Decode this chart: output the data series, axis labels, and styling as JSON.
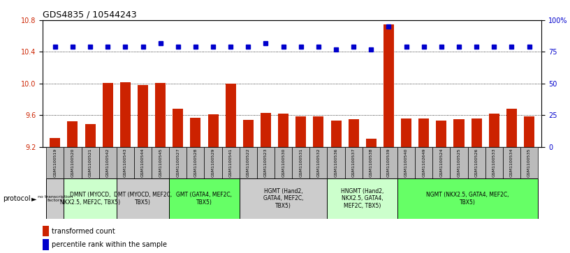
{
  "title": "GDS4835 / 10544243",
  "samples": [
    "GSM1100519",
    "GSM1100520",
    "GSM1100521",
    "GSM1100542",
    "GSM1100543",
    "GSM1100544",
    "GSM1100545",
    "GSM1100527",
    "GSM1100528",
    "GSM1100529",
    "GSM1100541",
    "GSM1100522",
    "GSM1100523",
    "GSM1100530",
    "GSM1100531",
    "GSM1100532",
    "GSM1100536",
    "GSM1100537",
    "GSM1100538",
    "GSM1100539",
    "GSM1100540",
    "GSM1102649",
    "GSM1100524",
    "GSM1100525",
    "GSM1100526",
    "GSM1100533",
    "GSM1100534",
    "GSM1100535"
  ],
  "bar_values": [
    9.31,
    9.52,
    9.49,
    10.01,
    10.02,
    9.98,
    10.01,
    9.68,
    9.57,
    9.61,
    10.0,
    9.54,
    9.63,
    9.62,
    9.58,
    9.58,
    9.53,
    9.55,
    9.3,
    10.75,
    9.56,
    9.56,
    9.53,
    9.55,
    9.56,
    9.62,
    9.68,
    9.58
  ],
  "percentile_values": [
    79,
    79,
    79,
    79,
    79,
    79,
    82,
    79,
    79,
    79,
    79,
    79,
    82,
    79,
    79,
    79,
    77,
    79,
    77,
    95,
    79,
    79,
    79,
    79,
    79,
    79,
    79,
    79
  ],
  "ylim_left": [
    9.2,
    10.8
  ],
  "ylim_right": [
    0,
    100
  ],
  "yticks_left": [
    9.2,
    9.6,
    10.0,
    10.4,
    10.8
  ],
  "yticks_right": [
    0,
    25,
    50,
    75,
    100
  ],
  "ytick_labels_right": [
    "0",
    "25",
    "50",
    "75",
    "100%"
  ],
  "bar_color": "#cc2200",
  "dot_color": "#0000cc",
  "protocol_groups": [
    {
      "label": "no transcription\nfactors",
      "start": 0,
      "end": 1,
      "color": "#cccccc"
    },
    {
      "label": "DMNT (MYOCD,\nNKX2.5, MEF2C, TBX5)",
      "start": 1,
      "end": 4,
      "color": "#ccffcc"
    },
    {
      "label": "DMT (MYOCD, MEF2C,\nTBX5)",
      "start": 4,
      "end": 7,
      "color": "#cccccc"
    },
    {
      "label": "GMT (GATA4, MEF2C,\nTBX5)",
      "start": 7,
      "end": 11,
      "color": "#66ff66"
    },
    {
      "label": "HGMT (Hand2,\nGATA4, MEF2C,\nTBX5)",
      "start": 11,
      "end": 16,
      "color": "#cccccc"
    },
    {
      "label": "HNGMT (Hand2,\nNKX2.5, GATA4,\nMEF2C, TBX5)",
      "start": 16,
      "end": 20,
      "color": "#ccffcc"
    },
    {
      "label": "NGMT (NKX2.5, GATA4, MEF2C,\nTBX5)",
      "start": 20,
      "end": 28,
      "color": "#66ff66"
    }
  ],
  "sample_box_color": "#bbbbbb",
  "protocol_label": "protocol",
  "legend_items": [
    {
      "color": "#cc2200",
      "label": "transformed count"
    },
    {
      "color": "#0000cc",
      "label": "percentile rank within the sample"
    }
  ],
  "bar_bottom": 9.2
}
